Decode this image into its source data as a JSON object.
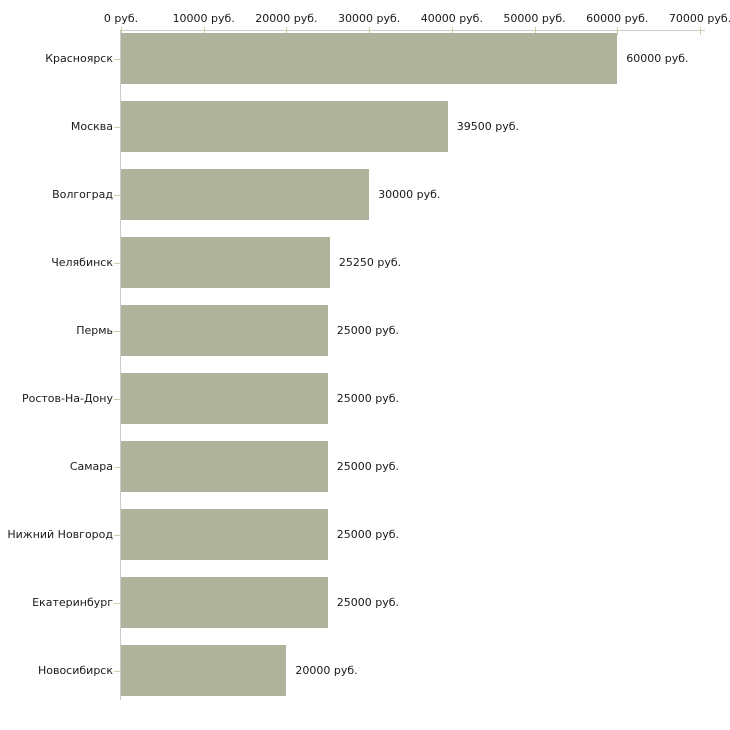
{
  "chart_data": {
    "type": "bar",
    "orientation": "horizontal",
    "title": "",
    "xlabel": "",
    "ylabel": "",
    "categories": [
      "Красноярск",
      "Москва",
      "Волгоград",
      "Челябинск",
      "Пермь",
      "Ростов-На-Дону",
      "Самара",
      "Нижний Новгород",
      "Екатеринбург",
      "Новосибирск"
    ],
    "values": [
      60000,
      39500,
      30000,
      25250,
      25000,
      25000,
      25000,
      25000,
      25000,
      20000
    ],
    "value_labels": [
      "60000 руб.",
      "39500 руб.",
      "30000 руб.",
      "25250 руб.",
      "25000 руб.",
      "25000 руб.",
      "25000 руб.",
      "25000 руб.",
      "25000 руб.",
      "20000 руб."
    ],
    "x_axis": {
      "position": "top",
      "xlim": [
        0,
        70000
      ],
      "ticks": [
        0,
        10000,
        20000,
        30000,
        40000,
        50000,
        60000,
        70000
      ],
      "tick_labels": [
        "0 руб.",
        "10000 руб.",
        "20000 руб.",
        "30000 руб.",
        "40000 руб.",
        "50000 руб.",
        "60000 руб.",
        "70000 руб."
      ]
    },
    "grid": false,
    "legend": null,
    "colors": {
      "bar": "#afb39c",
      "axis_line": "#cbcbcb",
      "tick_mark": "#cdd0a4",
      "text": "#1a1a1a",
      "background": "#ffffff"
    }
  }
}
